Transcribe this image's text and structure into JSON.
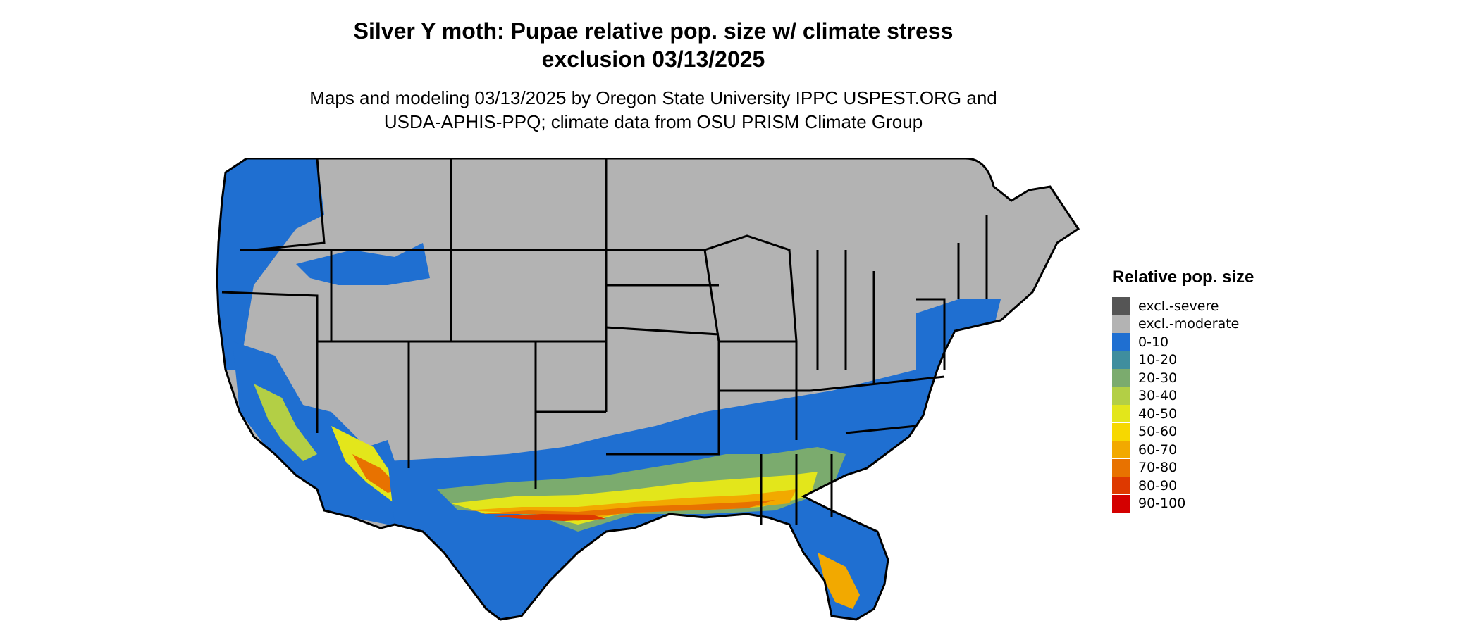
{
  "title_line1": "Silver Y moth: Pupae relative pop. size w/ climate stress",
  "title_line2": "exclusion 03/13/2025",
  "subtitle_line1": "Maps and modeling 03/13/2025 by Oregon State University IPPC USPEST.ORG and",
  "subtitle_line2": "USDA-APHIS-PPQ; climate data from OSU PRISM Climate Group",
  "legend": {
    "title": "Relative pop. size",
    "items": [
      {
        "label": "excl.-severe",
        "color": "#555555"
      },
      {
        "label": "excl.-moderate",
        "color": "#b3b3b3"
      },
      {
        "label": "0-10",
        "color": "#1f6fd1"
      },
      {
        "label": "10-20",
        "color": "#3f8e9e"
      },
      {
        "label": "20-30",
        "color": "#7bab6e"
      },
      {
        "label": "30-40",
        "color": "#b3cf45"
      },
      {
        "label": "40-50",
        "color": "#e3e61b"
      },
      {
        "label": "50-60",
        "color": "#f7d800"
      },
      {
        "label": "60-70",
        "color": "#f2a900"
      },
      {
        "label": "70-80",
        "color": "#e87200"
      },
      {
        "label": "80-90",
        "color": "#de3900"
      },
      {
        "label": "90-100",
        "color": "#d40000"
      }
    ]
  }
}
